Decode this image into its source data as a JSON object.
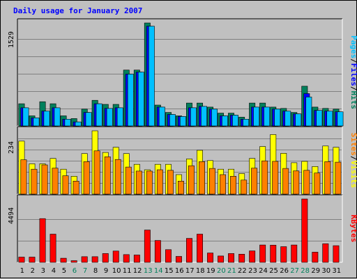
{
  "chart_data": {
    "title": "Daily usage for January 2007",
    "type": "bar",
    "days": [
      "1",
      "2",
      "3",
      "4",
      "5",
      "6",
      "7",
      "8",
      "9",
      "10",
      "11",
      "12",
      "13",
      "14",
      "15",
      "16",
      "17",
      "18",
      "19",
      "20",
      "21",
      "22",
      "23",
      "24",
      "25",
      "26",
      "27",
      "28",
      "29",
      "30",
      "31"
    ],
    "weekend_days": [
      "6",
      "7",
      "13",
      "14",
      "20",
      "21",
      "27",
      "28"
    ],
    "colors": {
      "background": "#c0c0c0",
      "hits": "#00805c",
      "files": "#0000ff",
      "pages": "#00c0ff",
      "visits": "#ffff00",
      "sites": "#ff8000",
      "kbytes": "#ff0000",
      "weekday_label": "#000000",
      "weekend_label": "#00805c"
    },
    "panels": [
      {
        "id": "hits-files-pages",
        "max_label": "1529",
        "ymax": 1529,
        "legend": [
          {
            "text": "Pages",
            "color": "#00c0ff"
          },
          {
            "text": "/",
            "color": "#000000"
          },
          {
            "text": "Files",
            "color": "#0000ff"
          },
          {
            "text": "/",
            "color": "#000000"
          },
          {
            "text": "Hits",
            "color": "#00805c"
          }
        ],
        "series": [
          {
            "name": "Hits",
            "color": "#00805c",
            "values": [
              330,
              150,
              360,
              330,
              150,
              110,
              250,
              380,
              320,
              320,
              830,
              830,
              1529,
              310,
              200,
              150,
              340,
              340,
              280,
              190,
              190,
              130,
              340,
              340,
              280,
              260,
              200,
              590,
              280,
              260,
              250
            ]
          },
          {
            "name": "Files",
            "color": "#0000ff",
            "values": [
              270,
              120,
              220,
              270,
              100,
              60,
              200,
              330,
              260,
              270,
              770,
              800,
              1480,
              280,
              170,
              140,
              270,
              290,
              250,
              150,
              160,
              100,
              280,
              280,
              250,
              220,
              180,
              480,
              230,
              220,
              210
            ]
          },
          {
            "name": "Pages",
            "color": "#00c0ff",
            "values": [
              270,
              120,
              220,
              270,
              100,
              60,
              200,
              330,
              260,
              270,
              770,
              800,
              1480,
              280,
              170,
              140,
              270,
              290,
              250,
              150,
              160,
              100,
              280,
              280,
              250,
              220,
              180,
              430,
              230,
              220,
              210
            ]
          }
        ]
      },
      {
        "id": "visits-sites",
        "max_label": "234",
        "ymax": 234,
        "legend": [
          {
            "text": "Sites",
            "color": "#ff8000"
          },
          {
            "text": "/",
            "color": "#000000"
          },
          {
            "text": "Visits",
            "color": "#ffff00"
          }
        ],
        "series": [
          {
            "name": "Visits",
            "color": "#ffff00",
            "values": [
              196,
              112,
              112,
              132,
              92,
              66,
              150,
              234,
              154,
              173,
              150,
              110,
              90,
              110,
              110,
              72,
              130,
              162,
              124,
              92,
              92,
              76,
              132,
              176,
              220,
              151,
              116,
              121,
              102,
              178,
              173
            ]
          },
          {
            "name": "Sites",
            "color": "#ff8000",
            "values": [
              127,
              92,
              108,
              96,
              68,
              48,
              120,
              160,
              138,
              128,
              100,
              85,
              85,
              90,
              88,
              48,
              105,
              120,
              95,
              72,
              66,
              52,
              96,
              123,
              121,
              95,
              86,
              88,
              78,
              120,
              118
            ]
          }
        ]
      },
      {
        "id": "kbytes",
        "max_label": "4494",
        "ymax": 4494,
        "legend": [
          {
            "text": "KBytes",
            "color": "#ff0000"
          }
        ],
        "series": [
          {
            "name": "KBytes",
            "color": "#ff0000",
            "values": [
              370,
              370,
              3100,
              2000,
              290,
              120,
              400,
              400,
              620,
              800,
              550,
              520,
              2290,
              1550,
              900,
              420,
              1700,
              2000,
              660,
              450,
              620,
              580,
              810,
              1230,
              1220,
              1110,
              1230,
              4494,
              720,
              1320,
              1180
            ]
          }
        ]
      }
    ]
  }
}
